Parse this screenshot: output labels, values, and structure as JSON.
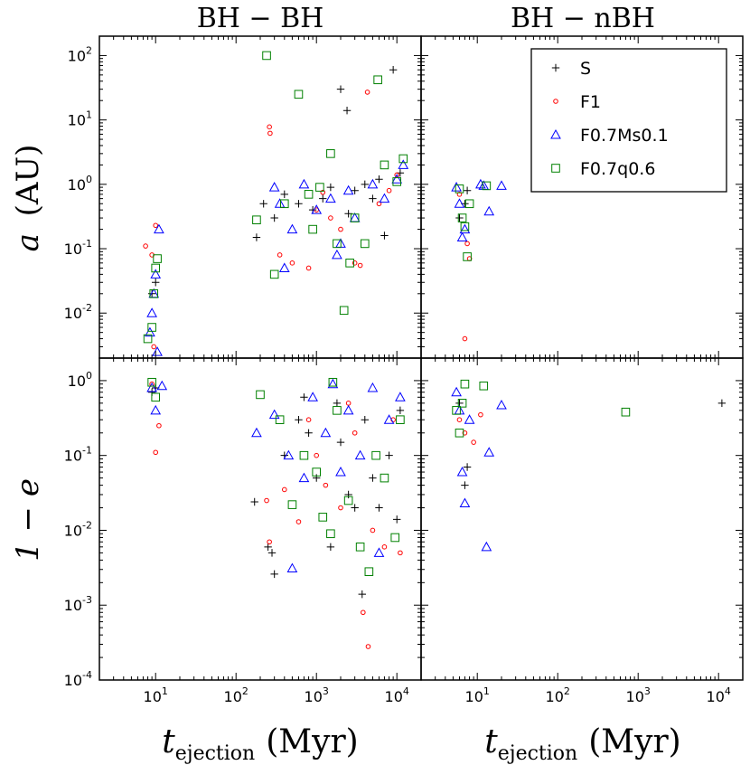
{
  "chart_data": {
    "type": "scatter",
    "panel_titles": [
      "BH − BH",
      "BH − nBH"
    ],
    "xlabel_main": "t",
    "xlabel_sub": "ejection",
    "xlabel_unit": "(Myr)",
    "ylabel_top_var": "a",
    "ylabel_top_unit": "(AU)",
    "ylabel_bottom": "1 − e",
    "x_scale": "log",
    "xlim": [
      2,
      20000
    ],
    "ylim_top": [
      0.002,
      200
    ],
    "ylim_bottom": [
      0.0001,
      2
    ],
    "x_ticks": [
      "10",
      "2",
      "10",
      "3",
      "10",
      "4"
    ],
    "x_tick_labels": [
      {
        "base": "10",
        "exp": "1"
      },
      {
        "base": "10",
        "exp": "2"
      },
      {
        "base": "10",
        "exp": "3"
      },
      {
        "base": "10",
        "exp": "4"
      }
    ],
    "y_tick_labels_top": [
      {
        "base": "10",
        "exp": "-2"
      },
      {
        "base": "10",
        "exp": "-1"
      },
      {
        "base": "10",
        "exp": "0"
      },
      {
        "base": "10",
        "exp": "1"
      },
      {
        "base": "10",
        "exp": "2"
      }
    ],
    "y_tick_labels_bottom": [
      {
        "base": "10",
        "exp": "-4"
      },
      {
        "base": "10",
        "exp": "-3"
      },
      {
        "base": "10",
        "exp": "-2"
      },
      {
        "base": "10",
        "exp": "-1"
      },
      {
        "base": "10",
        "exp": "0"
      }
    ],
    "legend_position": "top-right of BH − nBH top panel",
    "series": [
      {
        "name": "S",
        "marker": "plus",
        "color": "#000000",
        "bhbh_a": [
          [
            9,
            0.02
          ],
          [
            10,
            0.03
          ],
          [
            180,
            0.15
          ],
          [
            220,
            0.5
          ],
          [
            300,
            0.3
          ],
          [
            400,
            0.7
          ],
          [
            600,
            0.5
          ],
          [
            900,
            0.4
          ],
          [
            1200,
            0.6
          ],
          [
            1500,
            0.9
          ],
          [
            2000,
            30
          ],
          [
            2400,
            14
          ],
          [
            3000,
            0.8
          ],
          [
            4000,
            1.0
          ],
          [
            5000,
            0.6
          ],
          [
            7000,
            0.16
          ],
          [
            9000,
            60
          ],
          [
            11000,
            1.5
          ],
          [
            2500,
            0.35
          ],
          [
            6000,
            1.2
          ]
        ],
        "bhnbh_a": [
          [
            6,
            0.3
          ],
          [
            7,
            0.5
          ],
          [
            7.5,
            0.8
          ]
        ],
        "bhbh_1e": [
          [
            9,
            0.7
          ],
          [
            10,
            0.8
          ],
          [
            170,
            0.024
          ],
          [
            250,
            0.006
          ],
          [
            280,
            0.005
          ],
          [
            300,
            0.0026
          ],
          [
            400,
            0.1
          ],
          [
            600,
            0.3
          ],
          [
            800,
            0.2
          ],
          [
            1000,
            0.05
          ],
          [
            1500,
            0.006
          ],
          [
            2000,
            0.15
          ],
          [
            2500,
            0.03
          ],
          [
            3000,
            0.02
          ],
          [
            3700,
            0.0014
          ],
          [
            4000,
            0.3
          ],
          [
            5000,
            0.05
          ],
          [
            6000,
            0.02
          ],
          [
            8000,
            0.1
          ],
          [
            10000,
            0.014
          ],
          [
            11000,
            0.4
          ],
          [
            1800,
            0.5
          ],
          [
            700,
            0.6
          ]
        ],
        "bhnbh_1e": [
          [
            6,
            0.5
          ],
          [
            7,
            0.04
          ],
          [
            7.5,
            0.07
          ],
          [
            11000,
            0.5
          ]
        ]
      },
      {
        "name": "F1",
        "marker": "circle",
        "color": "#ff0000",
        "bhbh_a": [
          [
            7.5,
            0.11
          ],
          [
            9,
            0.08
          ],
          [
            10,
            0.23
          ],
          [
            9.5,
            0.003
          ],
          [
            260,
            7.8
          ],
          [
            265,
            6.2
          ],
          [
            350,
            0.08
          ],
          [
            500,
            0.06
          ],
          [
            800,
            0.05
          ],
          [
            1000,
            0.4
          ],
          [
            1500,
            0.3
          ],
          [
            2000,
            0.2
          ],
          [
            3000,
            0.06
          ],
          [
            3500,
            0.055
          ],
          [
            4300,
            27
          ],
          [
            6000,
            0.5
          ],
          [
            8000,
            0.8
          ],
          [
            10000,
            1.4
          ],
          [
            1200,
            0.75
          ]
        ],
        "bhnbh_a": [
          [
            6,
            0.7
          ],
          [
            7,
            0.004
          ],
          [
            7.5,
            0.12
          ],
          [
            8,
            0.07
          ]
        ],
        "bhbh_1e": [
          [
            9,
            0.9
          ],
          [
            10,
            0.11
          ],
          [
            11,
            0.25
          ],
          [
            240,
            0.025
          ],
          [
            260,
            0.007
          ],
          [
            400,
            0.035
          ],
          [
            600,
            0.013
          ],
          [
            800,
            0.3
          ],
          [
            1000,
            0.1
          ],
          [
            1300,
            0.04
          ],
          [
            2000,
            0.02
          ],
          [
            3000,
            0.2
          ],
          [
            3800,
            0.0008
          ],
          [
            4400,
            0.00028
          ],
          [
            5000,
            0.01
          ],
          [
            7000,
            0.006
          ],
          [
            9000,
            0.3
          ],
          [
            11000,
            0.005
          ],
          [
            2500,
            0.5
          ]
        ],
        "bhnbh_1e": [
          [
            6,
            0.3
          ],
          [
            7,
            0.2
          ],
          [
            9,
            0.15
          ],
          [
            11,
            0.35
          ]
        ]
      },
      {
        "name": "F0.7Ms0.1",
        "marker": "triangle",
        "color": "#0000ff",
        "bhbh_a": [
          [
            8.5,
            0.005
          ],
          [
            9,
            0.01
          ],
          [
            9.5,
            0.02
          ],
          [
            10,
            0.04
          ],
          [
            11,
            0.2
          ],
          [
            10.5,
            0.0025
          ],
          [
            300,
            0.9
          ],
          [
            350,
            0.5
          ],
          [
            500,
            0.2
          ],
          [
            700,
            1.0
          ],
          [
            1000,
            0.4
          ],
          [
            1500,
            0.6
          ],
          [
            2000,
            0.12
          ],
          [
            2500,
            0.8
          ],
          [
            3000,
            0.3
          ],
          [
            5000,
            1.0
          ],
          [
            7000,
            0.6
          ],
          [
            10000,
            1.2
          ],
          [
            12000,
            2.0
          ],
          [
            400,
            0.05
          ],
          [
            1800,
            0.08
          ]
        ],
        "bhnbh_a": [
          [
            5.5,
            0.9
          ],
          [
            6,
            0.5
          ],
          [
            6.5,
            0.15
          ],
          [
            7,
            0.2
          ],
          [
            12,
            0.95
          ],
          [
            14,
            0.38
          ],
          [
            20,
            0.95
          ],
          [
            11,
            1.0
          ]
        ],
        "bhbh_1e": [
          [
            9,
            0.8
          ],
          [
            10,
            0.4
          ],
          [
            12,
            0.85
          ],
          [
            180,
            0.2
          ],
          [
            300,
            0.35
          ],
          [
            450,
            0.1
          ],
          [
            500,
            0.0031
          ],
          [
            700,
            0.05
          ],
          [
            900,
            0.6
          ],
          [
            1300,
            0.2
          ],
          [
            2000,
            0.06
          ],
          [
            2500,
            0.4
          ],
          [
            3500,
            0.1
          ],
          [
            5000,
            0.8
          ],
          [
            6000,
            0.005
          ],
          [
            8000,
            0.3
          ],
          [
            11000,
            0.6
          ],
          [
            1600,
            0.9
          ]
        ],
        "bhnbh_1e": [
          [
            5.5,
            0.7
          ],
          [
            6,
            0.4
          ],
          [
            6.5,
            0.06
          ],
          [
            7,
            0.023
          ],
          [
            8,
            0.3
          ],
          [
            13,
            0.006
          ],
          [
            14,
            0.11
          ],
          [
            20,
            0.47
          ]
        ]
      },
      {
        "name": "F0.7q0.6",
        "marker": "square",
        "color": "#008000",
        "bhbh_a": [
          [
            8,
            0.004
          ],
          [
            9,
            0.006
          ],
          [
            9.5,
            0.02
          ],
          [
            10,
            0.05
          ],
          [
            10.5,
            0.07
          ],
          [
            180,
            0.28
          ],
          [
            240,
            100
          ],
          [
            300,
            0.04
          ],
          [
            400,
            0.5
          ],
          [
            600,
            25
          ],
          [
            900,
            0.2
          ],
          [
            1100,
            0.9
          ],
          [
            1500,
            3.0
          ],
          [
            1800,
            0.12
          ],
          [
            2200,
            0.011
          ],
          [
            2600,
            0.06
          ],
          [
            3000,
            0.3
          ],
          [
            4000,
            0.12
          ],
          [
            5800,
            42
          ],
          [
            7000,
            2.0
          ],
          [
            10000,
            1.1
          ],
          [
            12000,
            2.5
          ],
          [
            800,
            0.7
          ]
        ],
        "bhnbh_a": [
          [
            6,
            0.85
          ],
          [
            6.5,
            0.3
          ],
          [
            7,
            0.22
          ],
          [
            7.5,
            0.075
          ],
          [
            8,
            0.5
          ],
          [
            13,
            0.95
          ]
        ],
        "bhbh_1e": [
          [
            9,
            0.95
          ],
          [
            10,
            0.6
          ],
          [
            200,
            0.65
          ],
          [
            350,
            0.3
          ],
          [
            500,
            0.022
          ],
          [
            700,
            0.1
          ],
          [
            1000,
            0.06
          ],
          [
            1200,
            0.015
          ],
          [
            1500,
            0.009
          ],
          [
            1800,
            0.4
          ],
          [
            2500,
            0.025
          ],
          [
            3500,
            0.006
          ],
          [
            4500,
            0.0028
          ],
          [
            5500,
            0.1
          ],
          [
            7000,
            0.05
          ],
          [
            9500,
            0.008
          ],
          [
            11000,
            0.3
          ],
          [
            1600,
            0.95
          ]
        ],
        "bhnbh_1e": [
          [
            5.5,
            0.4
          ],
          [
            6,
            0.2
          ],
          [
            6.5,
            0.5
          ],
          [
            7,
            0.9
          ],
          [
            12,
            0.85
          ],
          [
            700,
            0.38
          ]
        ]
      }
    ]
  }
}
